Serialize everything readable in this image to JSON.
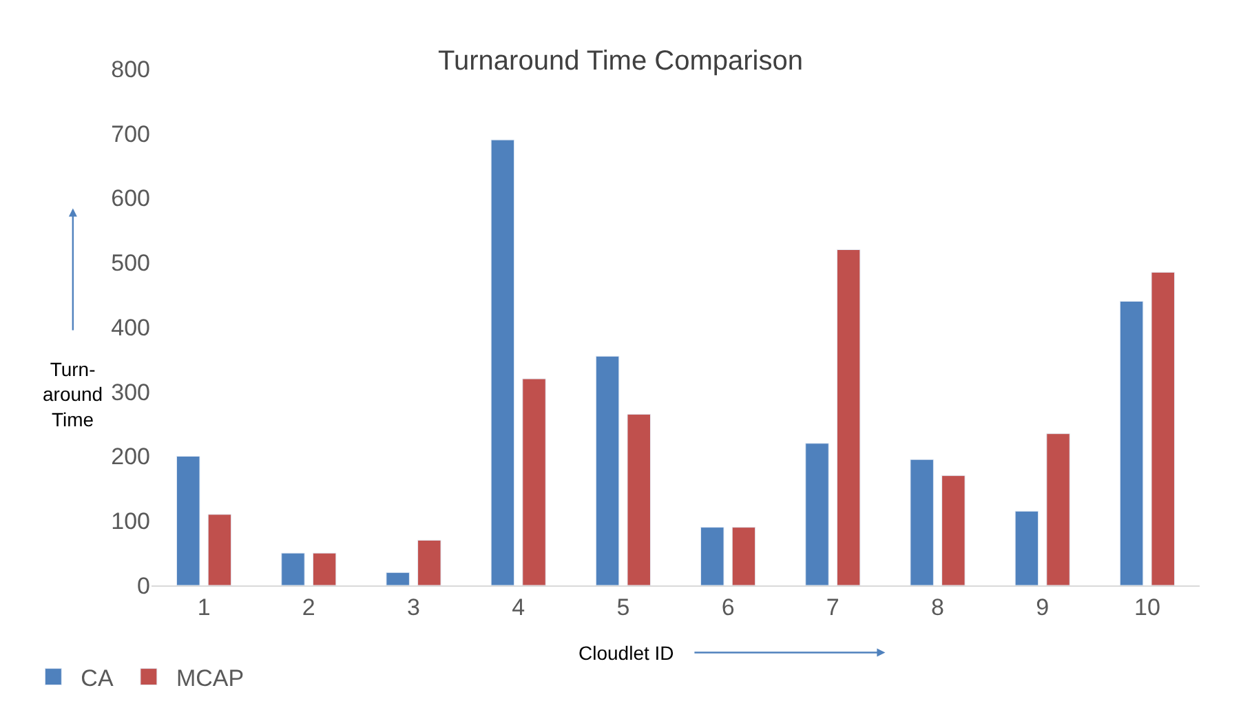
{
  "chart_data": {
    "type": "bar",
    "title": "Turnaround Time Comparison",
    "xlabel": "Cloudlet ID",
    "ylabel": "Turn-around Time",
    "categories": [
      "1",
      "2",
      "3",
      "4",
      "5",
      "6",
      "7",
      "8",
      "9",
      "10"
    ],
    "series": [
      {
        "name": "CA",
        "color": "#4f81bd",
        "values": [
          200,
          50,
          20,
          690,
          355,
          90,
          220,
          195,
          115,
          440
        ]
      },
      {
        "name": "MCAP",
        "color": "#c0504d",
        "values": [
          110,
          50,
          70,
          320,
          265,
          90,
          520,
          170,
          235,
          485
        ]
      }
    ],
    "ylim": [
      0,
      800
    ],
    "yticks": [
      0,
      100,
      200,
      300,
      400,
      500,
      600,
      700,
      800
    ],
    "legend": "bottom left"
  }
}
